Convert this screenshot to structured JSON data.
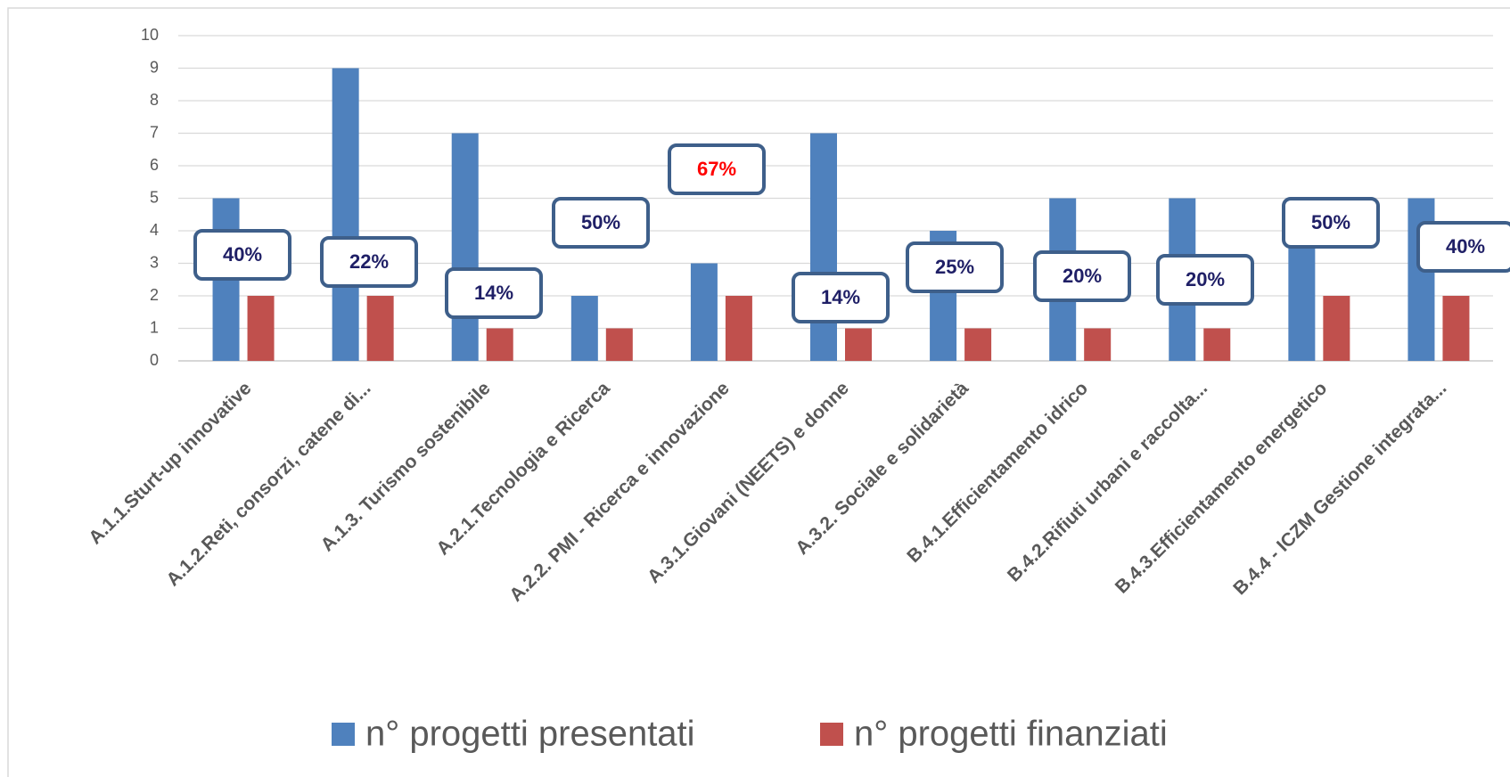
{
  "chart_data": {
    "type": "bar",
    "categories": [
      "A.1.1.Sturt-up innovative",
      "A.1.2.Reti, consorzi, catene di...",
      "A.1.3. Turismo sostenibile",
      "A.2.1.Tecnologia e Ricerca",
      "A.2.2. PMI - Ricerca e innovazione",
      "A.3.1.Giovani (NEETS) e donne",
      "A.3.2. Sociale e solidarietà",
      "B.4.1.Efficientamento idrico",
      "B.4.2.Rifiuti urbani e raccolta...",
      "B.4.3.Efficientamento energetico",
      "B.4.4 - ICZM Gestione integrata..."
    ],
    "series": [
      {
        "name": "n° progetti presentati",
        "color": "#4f81bd",
        "values": [
          5,
          9,
          7,
          2,
          3,
          7,
          4,
          5,
          5,
          4,
          5
        ]
      },
      {
        "name": "n° progetti finanziati",
        "color": "#c0504d",
        "values": [
          2,
          2,
          1,
          1,
          2,
          1,
          1,
          1,
          1,
          2,
          2
        ]
      }
    ],
    "annotations": [
      {
        "text": "40%",
        "color": "#1f1f66"
      },
      {
        "text": "22%",
        "color": "#1f1f66"
      },
      {
        "text": "14%",
        "color": "#1f1f66"
      },
      {
        "text": "50%",
        "color": "#1f1f66"
      },
      {
        "text": "67%",
        "color": "#ff0000"
      },
      {
        "text": "14%",
        "color": "#1f1f66"
      },
      {
        "text": "25%",
        "color": "#1f1f66"
      },
      {
        "text": "20%",
        "color": "#1f1f66"
      },
      {
        "text": "20%",
        "color": "#1f1f66"
      },
      {
        "text": "50%",
        "color": "#1f1f66"
      },
      {
        "text": "40%",
        "color": "#1f1f66"
      }
    ],
    "ylim": [
      0,
      10
    ],
    "yticks": [
      0,
      1,
      2,
      3,
      4,
      5,
      6,
      7,
      8,
      9,
      10
    ],
    "grid": true,
    "legend": "bottom"
  }
}
